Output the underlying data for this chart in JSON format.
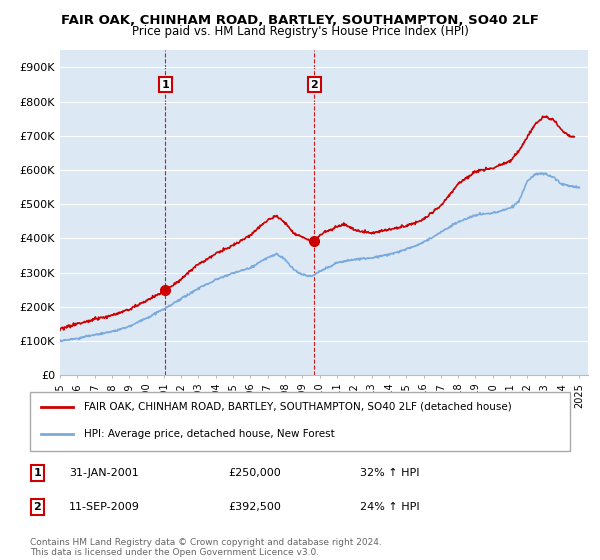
{
  "title": "FAIR OAK, CHINHAM ROAD, BARTLEY, SOUTHAMPTON, SO40 2LF",
  "subtitle": "Price paid vs. HM Land Registry's House Price Index (HPI)",
  "legend_label_red": "FAIR OAK, CHINHAM ROAD, BARTLEY, SOUTHAMPTON, SO40 2LF (detached house)",
  "legend_label_blue": "HPI: Average price, detached house, New Forest",
  "annotation1_date": "31-JAN-2001",
  "annotation1_price": "£250,000",
  "annotation1_hpi": "32% ↑ HPI",
  "annotation2_date": "11-SEP-2009",
  "annotation2_price": "£392,500",
  "annotation2_hpi": "24% ↑ HPI",
  "footnote": "Contains HM Land Registry data © Crown copyright and database right 2024.\nThis data is licensed under the Open Government Licence v3.0.",
  "ylim": [
    0,
    950000
  ],
  "yticks": [
    0,
    100000,
    200000,
    300000,
    400000,
    500000,
    600000,
    700000,
    800000,
    900000
  ],
  "ytick_labels": [
    "£0",
    "£100K",
    "£200K",
    "£300K",
    "£400K",
    "£500K",
    "£600K",
    "£700K",
    "£800K",
    "£900K"
  ],
  "background_color": "#dce9f5",
  "fig_bg_color": "#ffffff",
  "red_color": "#cc0000",
  "blue_color": "#7aaadd",
  "annotation_line_color": "#cc0000",
  "grid_color": "#ffffff",
  "sale1_x": 2001.08,
  "sale1_y": 250000,
  "sale2_x": 2009.7,
  "sale2_y": 392500,
  "xmin": 1995,
  "xmax": 2025.5,
  "red_x_pts": [
    1995,
    1996,
    1997,
    1998,
    1999,
    2000,
    2001.08,
    2002,
    2003,
    2004,
    2005,
    2006,
    2007,
    2007.5,
    2008,
    2008.5,
    2009.7,
    2010,
    2011,
    2011.5,
    2012,
    2013,
    2014,
    2015,
    2016,
    2017,
    2018,
    2019,
    2020,
    2021,
    2021.5,
    2022,
    2022.5,
    2023,
    2023.5,
    2024,
    2024.5
  ],
  "red_y_pts": [
    135000,
    150000,
    165000,
    175000,
    195000,
    220000,
    250000,
    285000,
    330000,
    360000,
    385000,
    415000,
    460000,
    470000,
    450000,
    420000,
    392500,
    415000,
    440000,
    445000,
    430000,
    420000,
    430000,
    440000,
    460000,
    500000,
    565000,
    600000,
    610000,
    630000,
    660000,
    700000,
    740000,
    760000,
    750000,
    720000,
    700000
  ],
  "blue_x_pts": [
    1995,
    1996,
    1997,
    1998,
    1999,
    2000,
    2001,
    2002,
    2003,
    2004,
    2005,
    2006,
    2007,
    2007.5,
    2008,
    2008.5,
    2009,
    2009.5,
    2010,
    2011,
    2012,
    2013,
    2014,
    2015,
    2016,
    2017,
    2018,
    2019,
    2020,
    2021,
    2021.5,
    2022,
    2022.5,
    2023,
    2023.5,
    2024,
    2024.5,
    2025
  ],
  "blue_y_pts": [
    100000,
    108000,
    118000,
    128000,
    145000,
    168000,
    195000,
    225000,
    255000,
    280000,
    300000,
    315000,
    345000,
    355000,
    340000,
    310000,
    295000,
    290000,
    305000,
    330000,
    340000,
    345000,
    355000,
    370000,
    390000,
    420000,
    450000,
    470000,
    475000,
    490000,
    510000,
    570000,
    590000,
    590000,
    580000,
    560000,
    555000,
    550000
  ]
}
